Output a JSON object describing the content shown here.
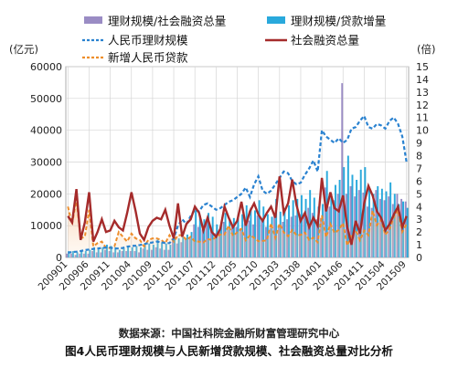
{
  "chart_data": {
    "type": "bar",
    "caption": {
      "source": "数据来源：中国社科院金融所财富管理研究中心",
      "title": "图4人民币理财规模与人民新增贷款规模、社会融资总量对比分析"
    },
    "y_left_unit": "(亿元)",
    "y_right_unit": "(倍)",
    "ylim_left": [
      0,
      60000
    ],
    "ylim_right": [
      0,
      15
    ],
    "y_left_ticks": [
      "0",
      "10000",
      "20000",
      "30000",
      "40000",
      "50000",
      "60000"
    ],
    "y_right_ticks": [
      "0",
      "1",
      "2",
      "3",
      "4",
      "5",
      "6",
      "7",
      "8",
      "9",
      "10",
      "11",
      "12",
      "13",
      "14",
      "15"
    ],
    "x_tick_labels": [
      "200901",
      "200906",
      "200911",
      "201004",
      "201009",
      "201102",
      "201107",
      "201112",
      "201205",
      "201210",
      "201303",
      "201308",
      "201401",
      "201406",
      "201411",
      "201504",
      "201509"
    ],
    "grid": true,
    "legend": {
      "placement": "top",
      "items": [
        {
          "label": "理财规模/社会融资总量",
          "kind": "bar",
          "color": "#9a8cc4"
        },
        {
          "label": "理财规模/贷款增量",
          "kind": "bar",
          "color": "#29a9dc"
        },
        {
          "label": "人民币理财规模",
          "kind": "dashed-line",
          "color": "#2a82d0"
        },
        {
          "label": "社会融资总量",
          "kind": "line",
          "color": "#a52b2b"
        },
        {
          "label": "新增人民币贷款",
          "kind": "dashed-line",
          "color": "#ee8e2c"
        }
      ]
    },
    "x": [
      "200901",
      "200902",
      "200903",
      "200904",
      "200905",
      "200906",
      "200907",
      "200908",
      "200909",
      "200910",
      "200911",
      "200912",
      "201001",
      "201002",
      "201003",
      "201004",
      "201005",
      "201006",
      "201007",
      "201008",
      "201009",
      "201010",
      "201011",
      "201012",
      "201101",
      "201102",
      "201103",
      "201104",
      "201105",
      "201106",
      "201107",
      "201108",
      "201109",
      "201110",
      "201111",
      "201112",
      "201201",
      "201202",
      "201203",
      "201204",
      "201205",
      "201206",
      "201207",
      "201208",
      "201209",
      "201210",
      "201211",
      "201212",
      "201301",
      "201302",
      "201303",
      "201304",
      "201305",
      "201306",
      "201307",
      "201308",
      "201309",
      "201310",
      "201311",
      "201312",
      "201401",
      "201402",
      "201403",
      "201404",
      "201405",
      "201406",
      "201407",
      "201408",
      "201409",
      "201410",
      "201411",
      "201412",
      "201501",
      "201502",
      "201503",
      "201504",
      "201505",
      "201506",
      "201507",
      "201508",
      "201509"
    ],
    "series": [
      {
        "name": "理财规模/社会融资总量",
        "axis": "right",
        "kind": "bar",
        "values": [
          0.3,
          0.3,
          0.2,
          0.3,
          0.3,
          0.3,
          0.5,
          0.4,
          0.4,
          0.6,
          0.5,
          0.4,
          0.4,
          0.5,
          0.5,
          0.5,
          0.5,
          0.4,
          0.7,
          0.6,
          0.6,
          0.8,
          0.7,
          0.6,
          0.6,
          1.3,
          1.1,
          1.2,
          1.4,
          1.5,
          2.6,
          2.4,
          2.2,
          2.8,
          2.4,
          1.9,
          2.0,
          2.8,
          2.2,
          2.5,
          2.4,
          2.3,
          2.7,
          2.9,
          2.6,
          3.3,
          3.0,
          2.4,
          2.3,
          3.4,
          2.5,
          2.8,
          3.0,
          3.2,
          3.3,
          3.4,
          3.5,
          3.9,
          3.5,
          3.0,
          3.1,
          5.5,
          4.0,
          4.5,
          5.0,
          13.7,
          5.0,
          5.6,
          4.8,
          5.3,
          5.1,
          4.0,
          3.9,
          5.3,
          4.6,
          4.5,
          4.8,
          4.2,
          5.0,
          4.6,
          4.4
        ]
      },
      {
        "name": "理财规模/贷款增量",
        "axis": "right",
        "kind": "bar",
        "values": [
          0.5,
          0.5,
          0.4,
          0.5,
          0.5,
          0.6,
          0.8,
          0.7,
          0.8,
          1.0,
          0.9,
          0.8,
          0.6,
          0.7,
          0.8,
          0.8,
          0.9,
          0.8,
          1.1,
          1.1,
          1.0,
          1.4,
          1.2,
          1.1,
          1.0,
          1.6,
          1.5,
          1.6,
          1.8,
          2.0,
          3.9,
          3.3,
          3.0,
          3.5,
          3.2,
          2.6,
          2.5,
          3.5,
          3.0,
          3.1,
          3.2,
          3.4,
          4.1,
          3.9,
          3.7,
          4.5,
          4.0,
          3.4,
          3.2,
          4.6,
          3.6,
          3.9,
          4.1,
          4.5,
          4.6,
          4.9,
          4.6,
          5.3,
          4.7,
          4.0,
          4.2,
          6.8,
          5.0,
          5.7,
          6.1,
          7.1,
          8.0,
          6.5,
          6.1,
          6.9,
          7.1,
          5.4,
          5.0,
          5.6,
          5.4,
          5.2,
          5.9,
          5.0,
          4.2,
          4.4,
          3.9
        ]
      },
      {
        "name": "人民币理财规模",
        "axis": "left",
        "kind": "dashed-line",
        "values": [
          1500,
          1700,
          1800,
          2000,
          2300,
          2500,
          2700,
          2800,
          3000,
          3100,
          3100,
          2800,
          2800,
          3000,
          3400,
          3600,
          3700,
          3900,
          4200,
          4500,
          4700,
          5000,
          4800,
          4500,
          4500,
          6000,
          10000,
          12000,
          10500,
          13000,
          15000,
          14500,
          16500,
          17000,
          16000,
          15000,
          15500,
          16500,
          17500,
          18000,
          19000,
          20000,
          22000,
          19000,
          23000,
          25500,
          21000,
          20000,
          21000,
          23000,
          25000,
          27000,
          26500,
          24000,
          23000,
          23500,
          26000,
          28000,
          30500,
          27000,
          40000,
          38000,
          37000,
          36000,
          37500,
          36000,
          37000,
          40500,
          41000,
          43000,
          44500,
          41000,
          40500,
          42000,
          41500,
          40500,
          43000,
          44000,
          42000,
          38000,
          30000
        ]
      },
      {
        "name": "社会融资总量",
        "axis": "left",
        "kind": "line",
        "values": [
          13000,
          11000,
          21500,
          5500,
          11000,
          20500,
          5000,
          8000,
          12000,
          8000,
          8500,
          11500,
          9500,
          8500,
          14000,
          20500,
          14500,
          7500,
          5500,
          9500,
          11500,
          12500,
          12000,
          15000,
          10000,
          6000,
          17000,
          6500,
          10500,
          12000,
          16000,
          14000,
          8500,
          12500,
          8000,
          6500,
          9000,
          16000,
          12500,
          9500,
          11500,
          17500,
          10000,
          14500,
          17000,
          13500,
          11500,
          14000,
          16000,
          12500,
          25500,
          14000,
          17000,
          24500,
          16500,
          11500,
          14000,
          9500,
          12500,
          10000,
          25000,
          14500,
          20500,
          15500,
          14500,
          19500,
          9500,
          4000,
          11500,
          7500,
          17000,
          22500,
          19500,
          14500,
          12500,
          8500,
          10500,
          13500,
          16000,
          9500,
          13000
        ]
      },
      {
        "name": "新增人民币贷款",
        "axis": "left",
        "kind": "dashed-line",
        "values": [
          16000,
          10500,
          18500,
          6000,
          6500,
          15000,
          3500,
          4500,
          5000,
          3000,
          3000,
          3500,
          8000,
          6500,
          5000,
          7500,
          6000,
          5500,
          3500,
          5500,
          6000,
          6000,
          5500,
          4500,
          7000,
          5000,
          7000,
          7000,
          5500,
          6500,
          5000,
          5000,
          4700,
          5800,
          5500,
          6400,
          7200,
          7200,
          10000,
          6800,
          7900,
          9000,
          5400,
          7000,
          6200,
          5100,
          5200,
          5400,
          10700,
          6200,
          10600,
          7900,
          6700,
          8600,
          7000,
          7100,
          7800,
          5500,
          6200,
          4800,
          13200,
          6400,
          10500,
          7700,
          8700,
          10800,
          3800,
          7000,
          8600,
          5400,
          8500,
          7000,
          14700,
          10200,
          11800,
          7100,
          9000,
          12800,
          14800,
          8100,
          10500
        ]
      }
    ]
  }
}
